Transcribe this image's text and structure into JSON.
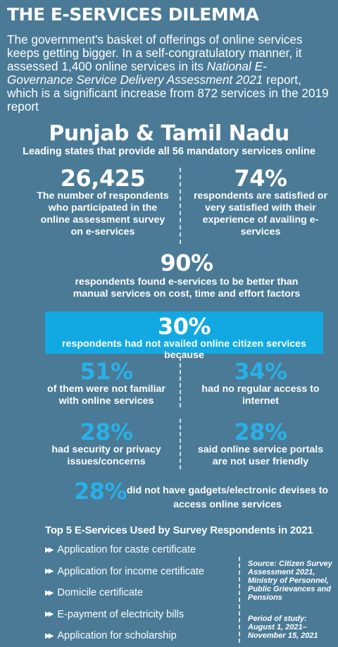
{
  "title": "THE E-SERVICES DILEMMA",
  "intro": {
    "part1": "The government's basket of offerings of online services keeps getting bigger. In a self-congratulatory manner, it assessed 1,400 online services in its ",
    "report": "National E-Governance Service Delivery Assessment 2021",
    "part2": " report, which is a significant increase from 872 services in the 2019 report"
  },
  "states": {
    "name": "Punjab & Tamil Nadu",
    "subtitle": "Leading states that provide all 56 mandatory services online"
  },
  "stats": {
    "respondents": {
      "value": "26,425",
      "text": "The number of respondents who participated in the online assessment survey on e-services"
    },
    "satisfied": {
      "value": "74%",
      "text": "respondents are satisfied or very satisfied with their experience of availing e-services"
    },
    "better": {
      "value": "90%",
      "text": "respondents found e-services to be better than manual services on cost, time and effort factors"
    }
  },
  "not_availed": {
    "value": "30%",
    "text": "respondents had not availed online citizen services because",
    "color": "#12a9e3"
  },
  "reasons": {
    "not_familiar": {
      "value": "51%",
      "text": "of them were not familiar with online services"
    },
    "no_internet": {
      "value": "34%",
      "text": "had no regular access to internet"
    },
    "security": {
      "value": "28%",
      "text": "had security or privacy issues/concerns"
    },
    "not_friendly": {
      "value": "28%",
      "text": "said online service portals are not user friendly"
    },
    "no_gadgets": {
      "value": "28%",
      "text": "did not have gadgets/electronic devises to access online services"
    }
  },
  "top5": {
    "heading": "Top 5 E-Services Used by Survey Respondents in 2021",
    "bullet_icon": "double-arrow-right-icon",
    "items": [
      "Application for caste certificate",
      "Application for income certificate",
      "Domicile certificate",
      "E-payment of electricity bills",
      "Application for scholarship"
    ]
  },
  "source": "Source: Citizen Survey Assessment 2021, Ministry of Personnel, Public Grievances and Pensions",
  "period": "Period of study: August 1, 2021–November 15, 2021",
  "colors": {
    "background": "#4a7a96",
    "accent": "#29b0e8"
  }
}
